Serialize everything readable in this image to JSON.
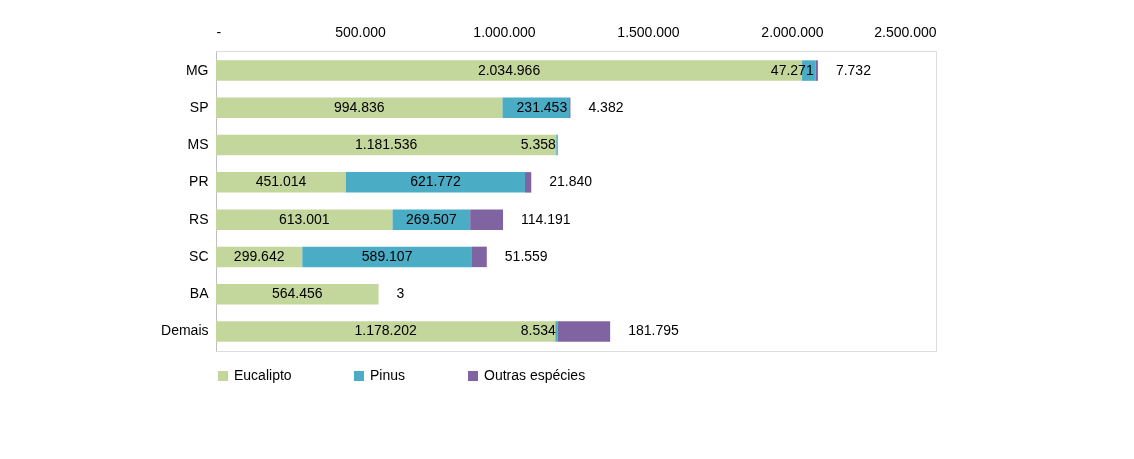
{
  "chart_data": {
    "type": "bar",
    "orientation": "horizontal",
    "stacked": true,
    "categories": [
      "MG",
      "SP",
      "MS",
      "PR",
      "RS",
      "SC",
      "BA",
      "Demais"
    ],
    "series": [
      {
        "name": "Eucalipto",
        "color": "#c3d69b",
        "values": [
          2034966,
          994836,
          1181536,
          451014,
          613001,
          299642,
          564456,
          1178202
        ],
        "value_labels": [
          "2.034.966",
          "994.836",
          "1.181.536",
          "451.014",
          "613.001",
          "299.642",
          "564.456",
          "1.178.202"
        ]
      },
      {
        "name": "Pinus",
        "color": "#4bacc6",
        "values": [
          47271,
          231453,
          5358,
          621772,
          269507,
          589107,
          null,
          8534
        ],
        "value_labels": [
          "47.271",
          "231.453",
          "5.358",
          "621.772",
          "269.507",
          "589.107",
          null,
          "8.534"
        ]
      },
      {
        "name": "Outras espécies",
        "color": "#8064a2",
        "values": [
          7732,
          4382,
          null,
          21840,
          114191,
          51559,
          3,
          181795
        ],
        "value_labels": [
          "7.732",
          "4.382",
          null,
          "21.840",
          "114.191",
          "51.559",
          "3",
          "181.795"
        ]
      }
    ],
    "xlim": [
      0,
      2500000
    ],
    "xticks": [
      {
        "value": 0,
        "label": "-"
      },
      {
        "value": 500000,
        "label": "500.000"
      },
      {
        "value": 1000000,
        "label": "1.000.000"
      },
      {
        "value": 1500000,
        "label": "1.500.000"
      },
      {
        "value": 2000000,
        "label": "2.000.000"
      },
      {
        "value": 2500000,
        "label": "2.500.000"
      }
    ],
    "grid": false,
    "legend": "bottom"
  }
}
